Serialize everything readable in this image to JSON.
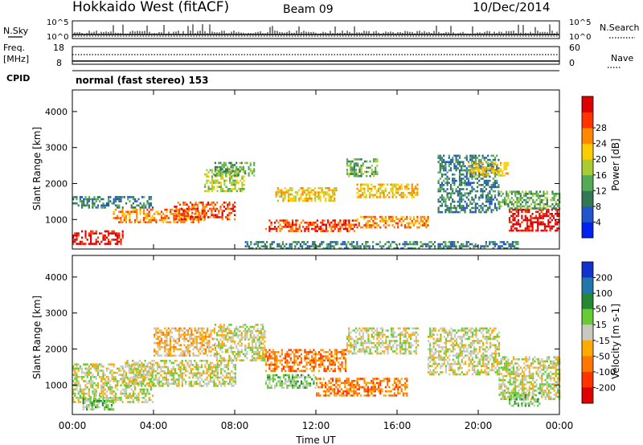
{
  "header": {
    "station": "Hokkaido West (fitACF)",
    "beam": "Beam 09",
    "date": "10/Dec/2014"
  },
  "summary_panels": {
    "nsky_label": "N.Sky",
    "nsky_ticks": [
      "10^5",
      "10^0"
    ],
    "nsearch_label": "N.Search",
    "nsearch_ticks": [
      "10^5",
      "10^0"
    ],
    "freq_label": "Freq.",
    "freq_unit": "[MHz]",
    "freq_ticks": [
      "18",
      "8"
    ],
    "nave_label": "Nave",
    "nave_ticks": [
      "60",
      "0"
    ],
    "cpid_label": "CPID",
    "cpid_value": "normal (fast stereo) 153"
  },
  "x_axis": {
    "label": "Time UT",
    "ticks": [
      "00:00",
      "04:00",
      "08:00",
      "12:00",
      "16:00",
      "20:00",
      "00:00"
    ],
    "range_hours": [
      0,
      24
    ]
  },
  "chart_data": [
    {
      "type": "heatmap",
      "panel": "power",
      "xlabel": "Time UT",
      "ylabel": "Slant Range [km]",
      "ylim": [
        180,
        4600
      ],
      "yticks": [
        "1000",
        "2000",
        "3000",
        "4000"
      ],
      "colorbar": {
        "title": "Power [dB]",
        "ticks": [
          "4",
          "8",
          "12",
          "16",
          "20",
          "24",
          "28"
        ],
        "colors": [
          "#0022ee",
          "#2255cc",
          "#337755",
          "#55aa55",
          "#aacc33",
          "#ffcc00",
          "#ff8800",
          "#ff3300",
          "#dd0000"
        ]
      },
      "echo_bands": [
        {
          "t": [
            0.0,
            4.0
          ],
          "r": [
            1350,
            1650
          ],
          "level": 2
        },
        {
          "t": [
            0.0,
            2.5
          ],
          "r": [
            300,
            700
          ],
          "level": 8
        },
        {
          "t": [
            2.0,
            6.5
          ],
          "r": [
            900,
            1300
          ],
          "level": 6
        },
        {
          "t": [
            5.0,
            8.0
          ],
          "r": [
            1000,
            1500
          ],
          "level": 7
        },
        {
          "t": [
            6.5,
            8.5
          ],
          "r": [
            1800,
            2400
          ],
          "level": 4
        },
        {
          "t": [
            7.0,
            9.0
          ],
          "r": [
            2200,
            2600
          ],
          "level": 3
        },
        {
          "t": [
            9.5,
            14.0
          ],
          "r": [
            700,
            1000
          ],
          "level": 7
        },
        {
          "t": [
            10.0,
            13.0
          ],
          "r": [
            1500,
            1900
          ],
          "level": 5
        },
        {
          "t": [
            14.0,
            17.5
          ],
          "r": [
            800,
            1100
          ],
          "level": 6
        },
        {
          "t": [
            14.0,
            17.0
          ],
          "r": [
            1600,
            2000
          ],
          "level": 5
        },
        {
          "t": [
            13.5,
            15.0
          ],
          "r": [
            2200,
            2700
          ],
          "level": 3
        },
        {
          "t": [
            18.0,
            21.0
          ],
          "r": [
            1200,
            2800
          ],
          "level": 2
        },
        {
          "t": [
            19.5,
            21.5
          ],
          "r": [
            2200,
            2600
          ],
          "level": 5
        },
        {
          "t": [
            21.5,
            24.0
          ],
          "r": [
            700,
            1300
          ],
          "level": 8
        },
        {
          "t": [
            21.0,
            24.0
          ],
          "r": [
            1300,
            1800
          ],
          "level": 3
        },
        {
          "t": [
            8.5,
            22.0
          ],
          "r": [
            200,
            400
          ],
          "level": 2
        }
      ]
    },
    {
      "type": "heatmap",
      "panel": "velocity",
      "xlabel": "Time UT",
      "ylabel": "Slant Range [km]",
      "ylim": [
        180,
        4600
      ],
      "yticks": [
        "1000",
        "2000",
        "3000",
        "4000"
      ],
      "colorbar": {
        "title": "Velocity [m s-1]",
        "ticks": [
          "200",
          "100",
          "50",
          "15",
          "-15",
          "-50",
          "-100",
          "-200"
        ],
        "colors": [
          "#1133cc",
          "#2277aa",
          "#228833",
          "#66cc33",
          "#c8c8c0",
          "#ffaa00",
          "#ff7700",
          "#ff3300",
          "#dd0000"
        ]
      },
      "echo_bands": [
        {
          "t": [
            0.0,
            4.0
          ],
          "r": [
            500,
            1600
          ],
          "level": 4
        },
        {
          "t": [
            0.5,
            2.0
          ],
          "r": [
            300,
            700
          ],
          "level": 3
        },
        {
          "t": [
            2.5,
            8.0
          ],
          "r": [
            1000,
            1700
          ],
          "level": 4
        },
        {
          "t": [
            4.0,
            7.0
          ],
          "r": [
            1800,
            2600
          ],
          "level": 5
        },
        {
          "t": [
            7.0,
            9.5
          ],
          "r": [
            1700,
            2700
          ],
          "level": 4
        },
        {
          "t": [
            9.5,
            13.5
          ],
          "r": [
            1400,
            2000
          ],
          "level": 6
        },
        {
          "t": [
            9.5,
            12.0
          ],
          "r": [
            900,
            1300
          ],
          "level": 3
        },
        {
          "t": [
            12.0,
            16.5
          ],
          "r": [
            700,
            1200
          ],
          "level": 6
        },
        {
          "t": [
            13.5,
            17.0
          ],
          "r": [
            1900,
            2600
          ],
          "level": 4
        },
        {
          "t": [
            17.5,
            21.0
          ],
          "r": [
            1300,
            2600
          ],
          "level": 4
        },
        {
          "t": [
            21.0,
            24.0
          ],
          "r": [
            600,
            1800
          ],
          "level": 4
        },
        {
          "t": [
            21.5,
            23.0
          ],
          "r": [
            400,
            800
          ],
          "level": 3
        }
      ]
    }
  ]
}
